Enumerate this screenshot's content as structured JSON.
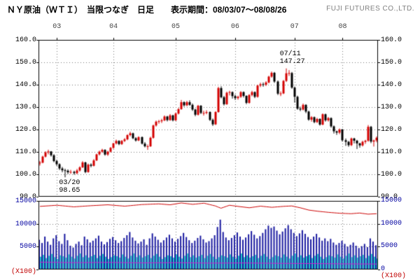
{
  "header": {
    "title": "ＮＹ原油（ＷＴＩ）　当限つなぎ　日足　　表示期間：08/03/07～08/08/26",
    "company": "FUJI FUTURES CO.,LTD."
  },
  "colors": {
    "up_candle": "#d40000",
    "down_candle": "#000000",
    "volume_blue": "#1a1aa0",
    "volume_cyan": "#1fc8c8",
    "line_red": "#cc0000",
    "line_magenta": "#cc22cc",
    "grid": "#777777",
    "border": "#000000",
    "price_axis_text": "#000000",
    "volume_axis_text": "#0000a0",
    "unit_text": "#c00000",
    "month_text": "#444444"
  },
  "chart_data": {
    "type": "candlestick+volume",
    "period": {
      "start": "08/03/07",
      "end": "08/08/26"
    },
    "price_axis": {
      "min": 90,
      "max": 160,
      "tick_labels": [
        "160.0",
        "150.0",
        "140.0",
        "130.0",
        "120.0",
        "110.0",
        "100.0",
        "90.0"
      ],
      "tick_values": [
        160,
        150,
        140,
        130,
        120,
        110,
        100,
        90
      ]
    },
    "volume_axis": {
      "min": 0,
      "max": 15000,
      "ticks_left_labels": [
        "15000",
        "10000",
        "5000"
      ],
      "ticks_left_values": [
        15000,
        10000,
        5000
      ],
      "ticks_right_labels": [
        "15000",
        "10000",
        "5000",
        "0"
      ],
      "ticks_right_values": [
        15000,
        10000,
        5000,
        0
      ],
      "unit": "(X100)"
    },
    "months": [
      {
        "label": "03",
        "day": 6
      },
      {
        "label": "04",
        "day": 26
      },
      {
        "label": "05",
        "day": 48
      },
      {
        "label": "06",
        "day": 69
      },
      {
        "label": "07",
        "day": 90
      },
      {
        "label": "08",
        "day": 107
      }
    ],
    "annotations": [
      {
        "day": 87,
        "price": 147.27,
        "text_lines": [
          "07/11",
          "147.27"
        ],
        "position": "above"
      },
      {
        "day": 9,
        "price": 98.65,
        "text_lines": [
          "03/20",
          "98.65"
        ],
        "position": "below"
      }
    ],
    "candles_ohlc": [
      [
        105.0,
        106.0,
        103.9,
        105.2
      ],
      [
        105.2,
        108.3,
        104.9,
        107.9
      ],
      [
        107.9,
        110.3,
        107.5,
        109.8
      ],
      [
        109.8,
        111.0,
        108.9,
        110.2
      ],
      [
        110.2,
        110.4,
        107.9,
        108.5
      ],
      [
        108.5,
        109.0,
        105.4,
        105.9
      ],
      [
        105.9,
        106.5,
        103.8,
        104.5
      ],
      [
        104.5,
        104.9,
        101.9,
        102.6
      ],
      [
        102.6,
        103.3,
        100.9,
        101.8
      ],
      [
        101.8,
        102.5,
        98.65,
        101.6
      ],
      [
        101.6,
        102.2,
        100.1,
        100.9
      ],
      [
        100.9,
        102.0,
        100.2,
        101.1
      ],
      [
        101.1,
        101.6,
        99.8,
        100.5
      ],
      [
        100.5,
        102.4,
        100.0,
        101.7
      ],
      [
        101.7,
        103.6,
        101.2,
        103.1
      ],
      [
        103.1,
        105.9,
        102.8,
        105.3
      ],
      [
        105.3,
        105.6,
        100.5,
        101.0
      ],
      [
        101.0,
        104.8,
        100.7,
        104.3
      ],
      [
        104.3,
        104.9,
        103.1,
        103.8
      ],
      [
        103.8,
        106.8,
        103.5,
        106.2
      ],
      [
        106.2,
        109.2,
        105.9,
        108.9
      ],
      [
        108.9,
        110.6,
        108.4,
        110.1
      ],
      [
        110.1,
        111.4,
        109.6,
        110.9
      ],
      [
        110.9,
        111.2,
        108.3,
        108.8
      ],
      [
        108.8,
        110.5,
        108.2,
        110.1
      ],
      [
        110.1,
        112.2,
        109.7,
        111.8
      ],
      [
        111.8,
        114.1,
        111.4,
        113.8
      ],
      [
        113.8,
        115.5,
        113.3,
        114.9
      ],
      [
        114.9,
        115.2,
        113.0,
        113.5
      ],
      [
        113.5,
        115.3,
        113.1,
        114.9
      ],
      [
        114.9,
        116.2,
        114.4,
        115.6
      ],
      [
        115.6,
        117.9,
        115.2,
        117.5
      ],
      [
        117.5,
        119.0,
        116.9,
        118.3
      ],
      [
        118.3,
        118.6,
        115.7,
        116.1
      ],
      [
        116.1,
        116.6,
        114.6,
        115.1
      ],
      [
        115.1,
        117.0,
        114.8,
        116.6
      ],
      [
        116.6,
        116.9,
        113.3,
        113.7
      ],
      [
        113.7,
        114.4,
        112.0,
        112.5
      ],
      [
        112.5,
        113.3,
        110.9,
        112.5
      ],
      [
        112.5,
        116.8,
        112.2,
        116.3
      ],
      [
        116.3,
        122.2,
        115.9,
        121.8
      ],
      [
        121.8,
        124.0,
        121.3,
        123.5
      ],
      [
        123.5,
        124.3,
        122.6,
        123.7
      ],
      [
        123.7,
        124.8,
        122.9,
        124.1
      ],
      [
        124.1,
        126.3,
        123.7,
        125.8
      ],
      [
        125.8,
        126.1,
        123.6,
        124.2
      ],
      [
        124.2,
        126.9,
        123.9,
        126.3
      ],
      [
        126.3,
        126.6,
        123.6,
        124.1
      ],
      [
        124.1,
        127.6,
        123.8,
        127.1
      ],
      [
        127.1,
        129.6,
        126.7,
        129.1
      ],
      [
        129.1,
        133.2,
        128.8,
        132.2
      ],
      [
        132.2,
        132.6,
        130.2,
        130.8
      ],
      [
        130.8,
        132.8,
        130.4,
        132.2
      ],
      [
        132.2,
        133.0,
        130.6,
        131.0
      ],
      [
        131.0,
        131.6,
        128.3,
        128.9
      ],
      [
        128.9,
        129.3,
        125.9,
        126.6
      ],
      [
        126.6,
        131.0,
        126.2,
        130.6
      ],
      [
        130.6,
        130.9,
        126.9,
        127.4
      ],
      [
        127.4,
        128.4,
        126.2,
        127.4
      ],
      [
        127.4,
        128.6,
        126.8,
        127.8
      ],
      [
        127.8,
        128.1,
        123.8,
        124.3
      ],
      [
        124.3,
        124.9,
        121.6,
        122.3
      ],
      [
        122.3,
        128.2,
        122.0,
        127.8
      ],
      [
        127.8,
        139.1,
        127.5,
        138.5
      ],
      [
        138.5,
        139.3,
        133.9,
        134.4
      ],
      [
        134.4,
        135.0,
        130.7,
        131.3
      ],
      [
        131.3,
        136.9,
        131.0,
        136.4
      ],
      [
        136.4,
        137.3,
        135.2,
        136.7
      ],
      [
        136.7,
        137.0,
        133.8,
        134.9
      ],
      [
        134.9,
        135.6,
        133.2,
        134.0
      ],
      [
        134.0,
        135.1,
        133.3,
        134.6
      ],
      [
        134.6,
        137.1,
        134.1,
        136.7
      ],
      [
        136.7,
        137.0,
        134.3,
        135.0
      ],
      [
        135.0,
        135.3,
        131.3,
        131.9
      ],
      [
        131.9,
        135.8,
        131.5,
        135.4
      ],
      [
        135.4,
        137.3,
        134.8,
        136.7
      ],
      [
        136.7,
        137.0,
        134.0,
        134.6
      ],
      [
        134.6,
        140.0,
        134.2,
        139.6
      ],
      [
        139.6,
        140.9,
        138.9,
        140.2
      ],
      [
        140.2,
        141.0,
        139.1,
        140.0
      ],
      [
        140.0,
        141.6,
        139.4,
        141.0
      ],
      [
        141.0,
        144.0,
        140.6,
        143.6
      ],
      [
        143.6,
        145.9,
        143.1,
        145.3
      ],
      [
        145.3,
        145.7,
        140.8,
        141.4
      ],
      [
        141.4,
        141.9,
        135.4,
        136.0
      ],
      [
        136.0,
        137.0,
        134.9,
        136.1
      ],
      [
        136.1,
        142.1,
        135.8,
        141.7
      ],
      [
        141.7,
        147.27,
        141.2,
        145.1
      ],
      [
        145.1,
        146.5,
        143.9,
        145.2
      ],
      [
        145.2,
        145.7,
        138.2,
        138.7
      ],
      [
        138.7,
        139.2,
        132.0,
        134.6
      ],
      [
        134.6,
        135.1,
        128.8,
        129.3
      ],
      [
        129.3,
        130.2,
        128.2,
        128.9
      ],
      [
        128.9,
        131.6,
        128.5,
        131.0
      ],
      [
        131.0,
        131.3,
        127.3,
        128.0
      ],
      [
        128.0,
        128.4,
        123.9,
        124.4
      ],
      [
        124.4,
        126.0,
        123.5,
        125.5
      ],
      [
        125.5,
        125.8,
        122.8,
        123.3
      ],
      [
        123.3,
        125.2,
        122.9,
        124.7
      ],
      [
        124.7,
        125.0,
        121.7,
        122.2
      ],
      [
        122.2,
        127.2,
        121.9,
        126.8
      ],
      [
        126.8,
        127.1,
        123.5,
        124.1
      ],
      [
        124.1,
        125.6,
        123.5,
        125.1
      ],
      [
        125.1,
        125.4,
        120.8,
        121.4
      ],
      [
        121.4,
        121.8,
        118.2,
        119.2
      ],
      [
        119.2,
        119.5,
        117.6,
        118.6
      ],
      [
        118.6,
        120.5,
        117.9,
        120.0
      ],
      [
        120.0,
        120.3,
        114.6,
        115.2
      ],
      [
        115.2,
        116.0,
        112.7,
        114.5
      ],
      [
        114.5,
        114.9,
        112.3,
        113.0
      ],
      [
        113.0,
        116.4,
        112.6,
        116.0
      ],
      [
        116.0,
        116.3,
        113.8,
        115.0
      ],
      [
        115.0,
        115.4,
        111.3,
        113.8
      ],
      [
        113.8,
        114.1,
        111.9,
        112.9
      ],
      [
        112.9,
        115.0,
        112.4,
        114.5
      ],
      [
        114.5,
        115.4,
        113.6,
        115.0
      ],
      [
        115.0,
        122.0,
        114.5,
        121.2
      ],
      [
        121.2,
        121.6,
        113.9,
        114.6
      ],
      [
        114.6,
        115.5,
        112.4,
        115.1
      ],
      [
        115.1,
        116.9,
        114.3,
        116.3
      ]
    ],
    "volume_blue": [
      6500,
      5800,
      7200,
      6100,
      5400,
      6800,
      7500,
      6200,
      5600,
      7800,
      6400,
      5200,
      4800,
      5600,
      6100,
      5300,
      7200,
      6600,
      5900,
      6300,
      6800,
      7400,
      6100,
      5500,
      6000,
      6700,
      7100,
      6400,
      5800,
      6200,
      6900,
      7500,
      8200,
      7000,
      6300,
      5700,
      6100,
      6600,
      5400,
      6800,
      7900,
      7200,
      6500,
      5900,
      6400,
      7000,
      7600,
      6800,
      6100,
      6700,
      7300,
      8000,
      7100,
      6400,
      5800,
      6300,
      6900,
      7400,
      6600,
      5900,
      6200,
      6800,
      7500,
      9300,
      10900,
      8200,
      7000,
      6400,
      6900,
      7500,
      8100,
      7200,
      6500,
      7000,
      7700,
      8400,
      7600,
      6800,
      7300,
      8000,
      8800,
      9600,
      9100,
      9400,
      8500,
      7700,
      8300,
      9000,
      9700,
      8800,
      8000,
      7300,
      7900,
      8600,
      7800,
      7100,
      6600,
      7200,
      7800,
      7000,
      6300,
      6800,
      6200,
      6700,
      5900,
      5400,
      5800,
      6300,
      5600,
      5000,
      5400,
      5900,
      5200,
      4700,
      5100,
      5600,
      4900,
      6800,
      6100,
      5300
    ],
    "volume_cyan": [
      2800,
      3200,
      2500,
      3000,
      3400,
      2700,
      2300,
      3100,
      2900,
      2600,
      3300,
      2800,
      2400,
      3000,
      3500,
      2700,
      3100,
      2600,
      2900,
      3200,
      2500,
      3000,
      3400,
      2800,
      2300,
      2700,
      3100,
      2900,
      2600,
      3300,
      2800,
      2400,
      3000,
      3500,
      2700,
      3100,
      2600,
      2900,
      3200,
      2500,
      3000,
      3400,
      2800,
      2300,
      2700,
      3100,
      2900,
      2600,
      3300,
      2800,
      2400,
      3000,
      3500,
      2700,
      3100,
      2600,
      2900,
      3200,
      2500,
      3000,
      3400,
      2800,
      2300,
      2700,
      3100,
      2900,
      2600,
      3300,
      2800,
      2400,
      3000,
      3500,
      2700,
      3100,
      2600,
      2900,
      3200,
      2500,
      3000,
      3400,
      2800,
      2300,
      2700,
      3100,
      2900,
      2600,
      3300,
      2800,
      2400,
      3000,
      3500,
      2700,
      3100,
      2600,
      2900,
      3200,
      2500,
      3000,
      3400,
      2800,
      2300,
      2700,
      3100,
      2900,
      2600,
      3300,
      2800,
      2400,
      3000,
      3500,
      2700,
      3100,
      2600,
      2900,
      3200,
      2500,
      3000,
      3400,
      2800,
      2400
    ],
    "line_red_points": [
      [
        0,
        13800
      ],
      [
        6,
        14050
      ],
      [
        12,
        13700
      ],
      [
        18,
        13950
      ],
      [
        24,
        14150
      ],
      [
        30,
        13850
      ],
      [
        36,
        14200
      ],
      [
        42,
        14350
      ],
      [
        46,
        14150
      ],
      [
        50,
        14550
      ],
      [
        54,
        14250
      ],
      [
        58,
        14500
      ],
      [
        62,
        13900
      ],
      [
        64,
        13400
      ],
      [
        67,
        14050
      ],
      [
        70,
        13800
      ],
      [
        74,
        13500
      ],
      [
        78,
        13850
      ],
      [
        82,
        13600
      ],
      [
        86,
        13800
      ],
      [
        89,
        13900
      ],
      [
        92,
        13500
      ],
      [
        95,
        13000
      ],
      [
        98,
        12750
      ],
      [
        102,
        12500
      ],
      [
        106,
        12300
      ],
      [
        110,
        12200
      ],
      [
        113,
        12350
      ],
      [
        116,
        12100
      ],
      [
        119,
        12200
      ]
    ],
    "line_magenta_points": [
      [
        0,
        1600
      ],
      [
        12,
        1500
      ],
      [
        24,
        1550
      ],
      [
        36,
        1450
      ],
      [
        48,
        1500
      ],
      [
        60,
        1400
      ],
      [
        72,
        1430
      ],
      [
        84,
        1350
      ],
      [
        96,
        1300
      ],
      [
        108,
        1230
      ],
      [
        119,
        1200
      ]
    ]
  }
}
